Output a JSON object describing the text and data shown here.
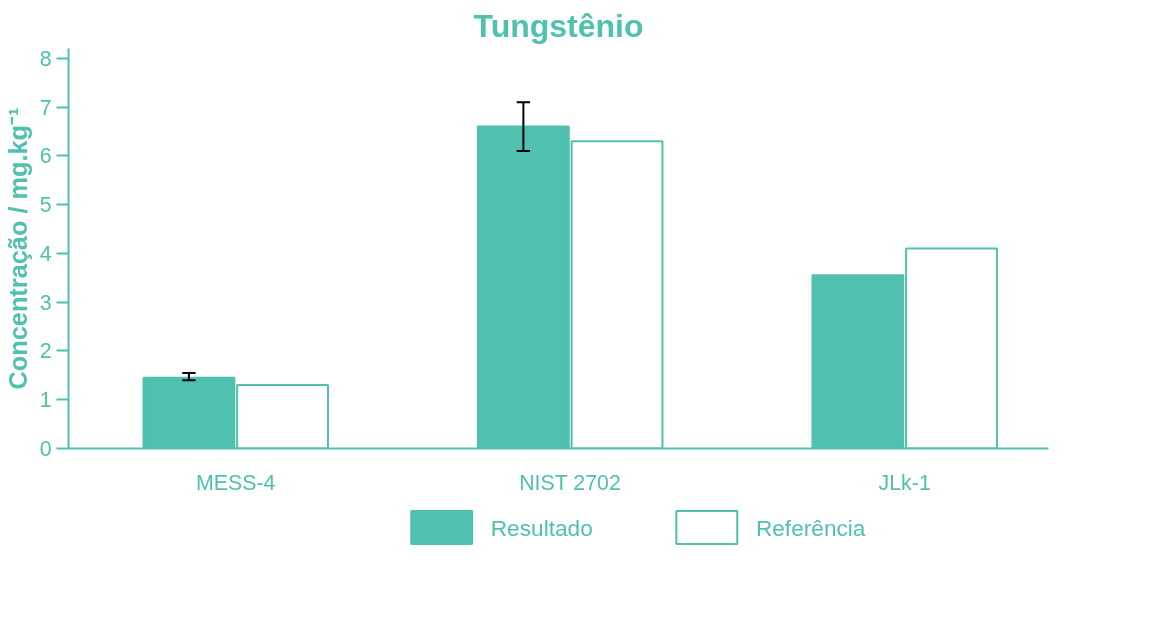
{
  "chart_data": {
    "type": "bar",
    "title": "Tungstênio",
    "ylabel": "Concentração / mg.kg⁻¹",
    "categories": [
      "MESS-4",
      "NIST 2702",
      "JLk-1"
    ],
    "series": [
      {
        "name": "Resultado",
        "color": "#4fc1ae",
        "values": [
          1.45,
          6.6,
          3.55
        ],
        "errors": [
          [
            1.4,
            1.55
          ],
          [
            6.1,
            7.1
          ],
          null
        ]
      },
      {
        "name": "Referência",
        "color": "#ffffff",
        "values": [
          1.3,
          6.3,
          4.1
        ]
      }
    ],
    "ylim": [
      0,
      8.2
    ],
    "yticks": [
      0,
      1,
      2,
      3,
      4,
      5,
      6,
      7,
      8
    ],
    "grid": false,
    "legend": "bottom"
  }
}
